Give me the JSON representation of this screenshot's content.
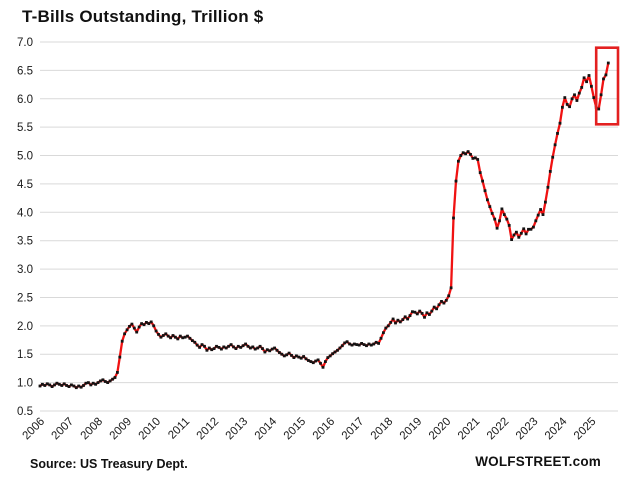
{
  "page": {
    "source": "Source: US Treasury Dept.",
    "watermark": "WOLFSTREET.com"
  },
  "chart_data": {
    "type": "line",
    "title": "T-Bills Outstanding, Trillion $",
    "ylabel": "Trillion $",
    "unit": "trillion USD",
    "frequency": "monthly",
    "x_start": "2006-01",
    "x_end": "2025-08",
    "x_axis_extends_to": "2025-12",
    "ylim": [
      0.5,
      7.0
    ],
    "y_ticks": [
      0.5,
      1.0,
      1.5,
      2.0,
      2.5,
      3.0,
      3.5,
      4.0,
      4.5,
      5.0,
      5.5,
      6.0,
      6.5,
      7.0
    ],
    "x_tick_years": [
      "2006",
      "2007",
      "2008",
      "2009",
      "2010",
      "2011",
      "2012",
      "2013",
      "2014",
      "2015",
      "2016",
      "2017",
      "2018",
      "2019",
      "2020",
      "2021",
      "2022",
      "2023",
      "2024",
      "2025"
    ],
    "grid": true,
    "legend": "none",
    "line_color": "#f01212",
    "marker_color": "#141414",
    "grid_color": "#d9d9d9",
    "text_color": "#1a1a1a",
    "annotation_box": {
      "meaning": "highlights 2025 debt-ceiling dip and post-resolution surge",
      "x_start": "2025-03",
      "x_end": "2025-12",
      "y_min": 5.55,
      "y_max": 6.9,
      "color": "#e32020"
    },
    "series": [
      {
        "name": "T-Bills outstanding",
        "values": [
          0.94,
          0.97,
          0.95,
          0.98,
          0.96,
          0.93,
          0.96,
          0.99,
          0.97,
          0.95,
          0.98,
          0.95,
          0.93,
          0.96,
          0.94,
          0.91,
          0.94,
          0.92,
          0.95,
          0.99,
          1.0,
          0.96,
          0.99,
          0.97,
          1.0,
          1.03,
          1.05,
          1.02,
          1.0,
          1.03,
          1.06,
          1.09,
          1.18,
          1.45,
          1.73,
          1.86,
          1.93,
          1.99,
          2.03,
          1.96,
          1.89,
          1.98,
          2.04,
          2.02,
          2.06,
          2.04,
          2.07,
          2.0,
          1.91,
          1.85,
          1.8,
          1.83,
          1.86,
          1.82,
          1.79,
          1.83,
          1.8,
          1.77,
          1.82,
          1.79,
          1.8,
          1.82,
          1.78,
          1.74,
          1.71,
          1.66,
          1.62,
          1.67,
          1.64,
          1.57,
          1.61,
          1.58,
          1.6,
          1.64,
          1.62,
          1.59,
          1.63,
          1.61,
          1.64,
          1.67,
          1.63,
          1.6,
          1.64,
          1.62,
          1.65,
          1.68,
          1.64,
          1.61,
          1.63,
          1.59,
          1.61,
          1.64,
          1.6,
          1.54,
          1.58,
          1.56,
          1.59,
          1.61,
          1.57,
          1.53,
          1.5,
          1.47,
          1.49,
          1.52,
          1.48,
          1.44,
          1.47,
          1.45,
          1.43,
          1.46,
          1.42,
          1.39,
          1.37,
          1.35,
          1.38,
          1.4,
          1.34,
          1.27,
          1.37,
          1.44,
          1.47,
          1.51,
          1.54,
          1.57,
          1.61,
          1.65,
          1.7,
          1.72,
          1.68,
          1.66,
          1.68,
          1.67,
          1.66,
          1.69,
          1.67,
          1.65,
          1.68,
          1.66,
          1.68,
          1.71,
          1.69,
          1.78,
          1.88,
          1.96,
          2.0,
          2.06,
          2.12,
          2.05,
          2.1,
          2.07,
          2.11,
          2.16,
          2.12,
          2.18,
          2.25,
          2.24,
          2.21,
          2.26,
          2.22,
          2.15,
          2.23,
          2.2,
          2.26,
          2.33,
          2.3,
          2.37,
          2.43,
          2.4,
          2.45,
          2.53,
          2.67,
          3.9,
          4.55,
          4.9,
          5.0,
          5.05,
          5.03,
          5.07,
          5.02,
          4.95,
          4.96,
          4.93,
          4.7,
          4.55,
          4.38,
          4.22,
          4.1,
          3.98,
          3.88,
          3.72,
          3.85,
          4.06,
          3.96,
          3.88,
          3.77,
          3.52,
          3.6,
          3.65,
          3.56,
          3.63,
          3.71,
          3.62,
          3.7,
          3.7,
          3.74,
          3.85,
          3.95,
          4.05,
          3.96,
          4.18,
          4.44,
          4.72,
          4.97,
          5.19,
          5.39,
          5.57,
          5.85,
          6.02,
          5.9,
          5.86,
          6.0,
          6.07,
          5.97,
          6.1,
          6.2,
          6.37,
          6.3,
          6.41,
          6.22,
          6.02,
          5.85,
          5.82,
          6.07,
          6.35,
          6.42,
          6.63
        ]
      }
    ]
  }
}
